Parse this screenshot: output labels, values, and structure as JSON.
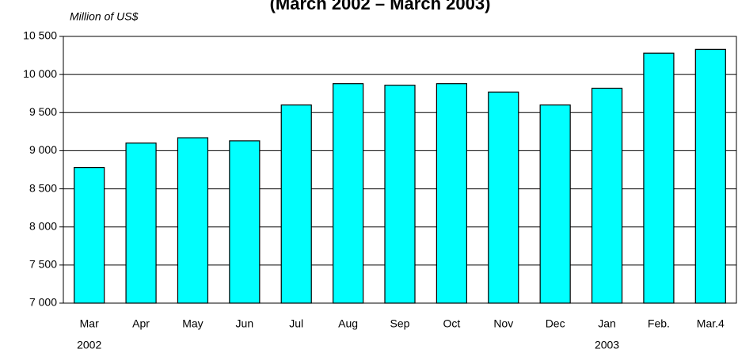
{
  "chart_data": {
    "type": "bar",
    "title": "(March 2002 – March 2003)",
    "subtitle": "Million of US$",
    "categories": [
      "Mar",
      "Apr",
      "May",
      "Jun",
      "Jul",
      "Aug",
      "Sep",
      "Oct",
      "Nov",
      "Dec",
      "Jan",
      "Feb.",
      "Mar.4"
    ],
    "category_years": [
      "2002",
      null,
      null,
      null,
      null,
      null,
      null,
      null,
      null,
      null,
      "2003",
      null,
      null
    ],
    "values": [
      8780,
      9100,
      9170,
      9130,
      9600,
      9880,
      9860,
      9880,
      9770,
      9600,
      9820,
      10280,
      10330
    ],
    "color": "#00ffff",
    "ylim": [
      7000,
      10500
    ],
    "yticks": [
      {
        "value": 7000,
        "label": "7 000"
      },
      {
        "value": 7500,
        "label": "7 500"
      },
      {
        "value": 8000,
        "label": "8 000"
      },
      {
        "value": 8500,
        "label": "8 500"
      },
      {
        "value": 9000,
        "label": "9 000"
      },
      {
        "value": 9500,
        "label": "9 500"
      },
      {
        "value": 10000,
        "label": "10 000"
      },
      {
        "value": 10500,
        "label": "10 500"
      }
    ],
    "grid": true
  }
}
